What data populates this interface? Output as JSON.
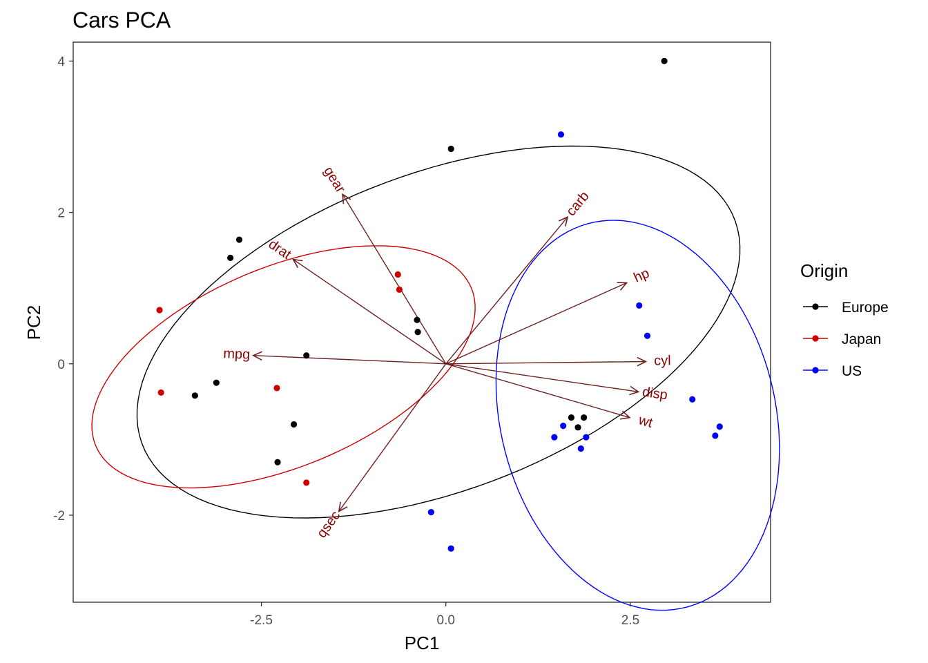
{
  "chart_data": {
    "type": "scatter",
    "title": "Cars PCA",
    "xlabel": "PC1",
    "ylabel": "PC2",
    "xlim": [
      -5.05,
      4.4
    ],
    "ylim": [
      -3.15,
      4.25
    ],
    "xticks": [
      -2.5,
      0.0,
      2.5
    ],
    "xtick_labels": [
      "-2.5",
      "0.0",
      "2.5"
    ],
    "yticks": [
      -2,
      0,
      2,
      4
    ],
    "ytick_labels": [
      "-2",
      "0",
      "2",
      "4"
    ],
    "grid": false,
    "legend": {
      "title": "Origin",
      "position": "right"
    },
    "series": [
      {
        "name": "Europe",
        "color": "#000000",
        "points": [
          [
            2.96,
            4.0
          ],
          [
            0.07,
            2.84
          ],
          [
            -2.8,
            1.64
          ],
          [
            -2.92,
            1.4
          ],
          [
            -0.39,
            0.58
          ],
          [
            -0.38,
            0.42
          ],
          [
            -1.89,
            0.11
          ],
          [
            -3.11,
            -0.25
          ],
          [
            -3.4,
            -0.42
          ],
          [
            -2.06,
            -0.8
          ],
          [
            -2.28,
            -1.3
          ],
          [
            1.7,
            -0.71
          ],
          [
            1.87,
            -0.71
          ],
          [
            1.79,
            -0.84
          ]
        ],
        "ellipse": {
          "cx": -0.1,
          "cy": 0.42,
          "rx": 4.28,
          "ry": 2.1,
          "angle_deg": 20
        }
      },
      {
        "name": "Japan",
        "color": "#cc0000",
        "points": [
          [
            -0.65,
            1.18
          ],
          [
            -0.63,
            0.98
          ],
          [
            -3.88,
            0.71
          ],
          [
            -3.86,
            -0.38
          ],
          [
            -2.29,
            -0.32
          ],
          [
            -1.89,
            -1.57
          ]
        ],
        "ellipse": {
          "cx": -2.2,
          "cy": -0.04,
          "rx": 2.75,
          "ry": 1.32,
          "angle_deg": 22
        }
      },
      {
        "name": "US",
        "color": "#0000ff",
        "points": [
          [
            1.56,
            3.03
          ],
          [
            2.62,
            0.77
          ],
          [
            2.73,
            0.37
          ],
          [
            3.34,
            -0.47
          ],
          [
            3.71,
            -0.83
          ],
          [
            3.65,
            -0.95
          ],
          [
            1.59,
            -0.82
          ],
          [
            1.47,
            -0.97
          ],
          [
            1.9,
            -0.97
          ],
          [
            1.83,
            -1.12
          ],
          [
            -0.2,
            -1.96
          ],
          [
            0.07,
            -2.44
          ]
        ],
        "ellipse": {
          "cx": 2.6,
          "cy": -0.68,
          "rx": 1.86,
          "ry": 2.62,
          "angle_deg": 15
        }
      }
    ],
    "loadings": [
      {
        "name": "gear",
        "x": -1.4,
        "y": 2.24
      },
      {
        "name": "carb",
        "x": 1.65,
        "y": 1.94
      },
      {
        "name": "drat",
        "x": -2.07,
        "y": 1.38
      },
      {
        "name": "hp",
        "x": 2.45,
        "y": 1.07
      },
      {
        "name": "mpg",
        "x": -2.61,
        "y": 0.11
      },
      {
        "name": "cyl",
        "x": 2.71,
        "y": 0.03
      },
      {
        "name": "disp",
        "x": 2.61,
        "y": -0.37
      },
      {
        "name": "wt",
        "x": 2.49,
        "y": -0.71
      },
      {
        "name": "qsec",
        "x": -1.45,
        "y": -1.95
      }
    ],
    "loading_color": "#8b0000"
  }
}
